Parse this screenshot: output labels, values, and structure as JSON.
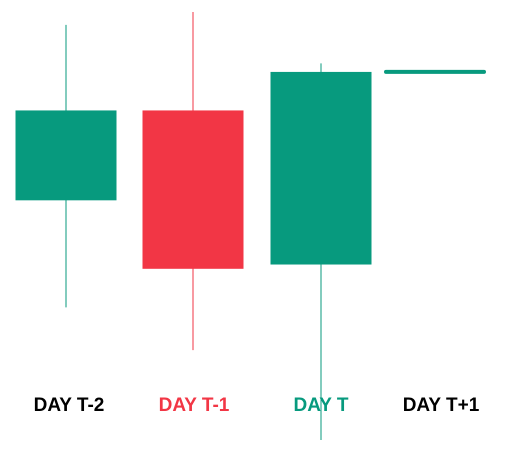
{
  "chart_data": {
    "type": "candlestick",
    "title": "",
    "xlabel": "",
    "ylabel": "",
    "grid": false,
    "axes_visible": false,
    "ylim": [
      0,
      100
    ],
    "colors": {
      "up": "#079a7e",
      "down": "#f23645",
      "label_default": "#000000"
    },
    "categories": [
      "DAY T-2",
      "DAY T-1",
      "DAY T",
      "DAY T+1"
    ],
    "candles": [
      {
        "label": "DAY T-2",
        "direction": "up",
        "open": 56,
        "close": 77,
        "high": 97,
        "low": 31
      },
      {
        "label": "DAY T-1",
        "direction": "down",
        "open": 77,
        "close": 40,
        "high": 100,
        "low": 21
      },
      {
        "label": "DAY T",
        "direction": "up",
        "open": 41,
        "close": 86,
        "high": 88,
        "low": 0
      },
      {
        "label": "DAY T+1",
        "direction": "flat",
        "open": 86,
        "close": 86,
        "high": 86,
        "low": 86
      }
    ],
    "label_colors": [
      "#000000",
      "#f23645",
      "#079a7e",
      "#000000"
    ]
  }
}
